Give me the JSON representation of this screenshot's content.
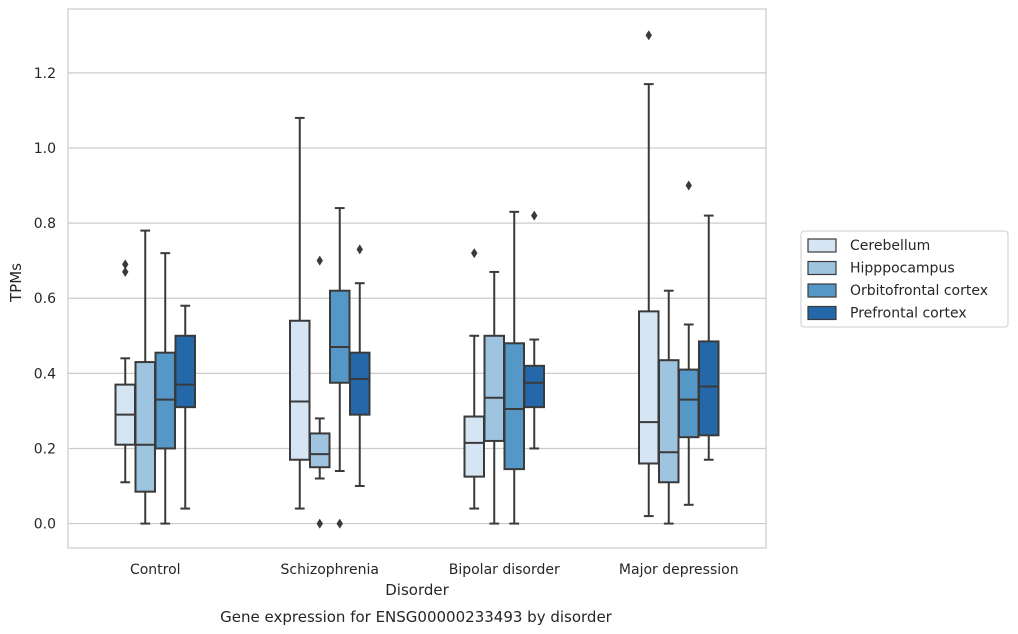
{
  "chart_data": {
    "type": "boxplot",
    "caption": "Gene expression for ENSG00000233493 by disorder",
    "xlabel": "Disorder",
    "ylabel": "TPMs",
    "ylim": [
      -0.065,
      1.37
    ],
    "yticks": [
      "0.0",
      "0.2",
      "0.4",
      "0.6",
      "0.8",
      "1.0",
      "1.2"
    ],
    "grid": "horizontal",
    "legend_position": "right",
    "categories": [
      "Control",
      "Schizophrenia",
      "Bipolar disorder",
      "Major depression"
    ],
    "series": [
      {
        "name": "Cerebellum",
        "color": "#d6e5f3",
        "boxes": [
          {
            "whislo": 0.11,
            "q1": 0.21,
            "med": 0.29,
            "q3": 0.37,
            "whishi": 0.44,
            "fliers": [
              0.67,
              0.69
            ]
          },
          {
            "whislo": 0.04,
            "q1": 0.17,
            "med": 0.325,
            "q3": 0.54,
            "whishi": 1.08,
            "fliers": []
          },
          {
            "whislo": 0.04,
            "q1": 0.125,
            "med": 0.215,
            "q3": 0.285,
            "whishi": 0.5,
            "fliers": [
              0.72
            ]
          },
          {
            "whislo": 0.02,
            "q1": 0.16,
            "med": 0.27,
            "q3": 0.565,
            "whishi": 1.17,
            "fliers": [
              1.3
            ]
          }
        ]
      },
      {
        "name": "Hipppocampus",
        "color": "#9ec4df",
        "boxes": [
          {
            "whislo": 0.0,
            "q1": 0.085,
            "med": 0.21,
            "q3": 0.43,
            "whishi": 0.78,
            "fliers": []
          },
          {
            "whislo": 0.12,
            "q1": 0.15,
            "med": 0.185,
            "q3": 0.24,
            "whishi": 0.28,
            "fliers": [
              0.0,
              0.7
            ]
          },
          {
            "whislo": 0.0,
            "q1": 0.22,
            "med": 0.335,
            "q3": 0.5,
            "whishi": 0.67,
            "fliers": []
          },
          {
            "whislo": 0.0,
            "q1": 0.11,
            "med": 0.19,
            "q3": 0.435,
            "whishi": 0.62,
            "fliers": []
          }
        ]
      },
      {
        "name": "Orbitofrontal cortex",
        "color": "#5597c6",
        "boxes": [
          {
            "whislo": 0.0,
            "q1": 0.2,
            "med": 0.33,
            "q3": 0.455,
            "whishi": 0.72,
            "fliers": []
          },
          {
            "whislo": 0.14,
            "q1": 0.375,
            "med": 0.47,
            "q3": 0.62,
            "whishi": 0.84,
            "fliers": [
              0.0
            ]
          },
          {
            "whislo": 0.0,
            "q1": 0.145,
            "med": 0.305,
            "q3": 0.48,
            "whishi": 0.83,
            "fliers": []
          },
          {
            "whislo": 0.05,
            "q1": 0.23,
            "med": 0.33,
            "q3": 0.41,
            "whishi": 0.53,
            "fliers": [
              0.9
            ]
          }
        ]
      },
      {
        "name": "Prefrontal cortex",
        "color": "#2468aa",
        "boxes": [
          {
            "whislo": 0.04,
            "q1": 0.31,
            "med": 0.37,
            "q3": 0.5,
            "whishi": 0.58,
            "fliers": []
          },
          {
            "whislo": 0.1,
            "q1": 0.29,
            "med": 0.385,
            "q3": 0.455,
            "whishi": 0.64,
            "fliers": [
              0.73
            ]
          },
          {
            "whislo": 0.2,
            "q1": 0.31,
            "med": 0.375,
            "q3": 0.42,
            "whishi": 0.49,
            "fliers": [
              0.82
            ]
          },
          {
            "whislo": 0.17,
            "q1": 0.235,
            "med": 0.365,
            "q3": 0.485,
            "whishi": 0.82,
            "fliers": []
          }
        ]
      }
    ]
  }
}
